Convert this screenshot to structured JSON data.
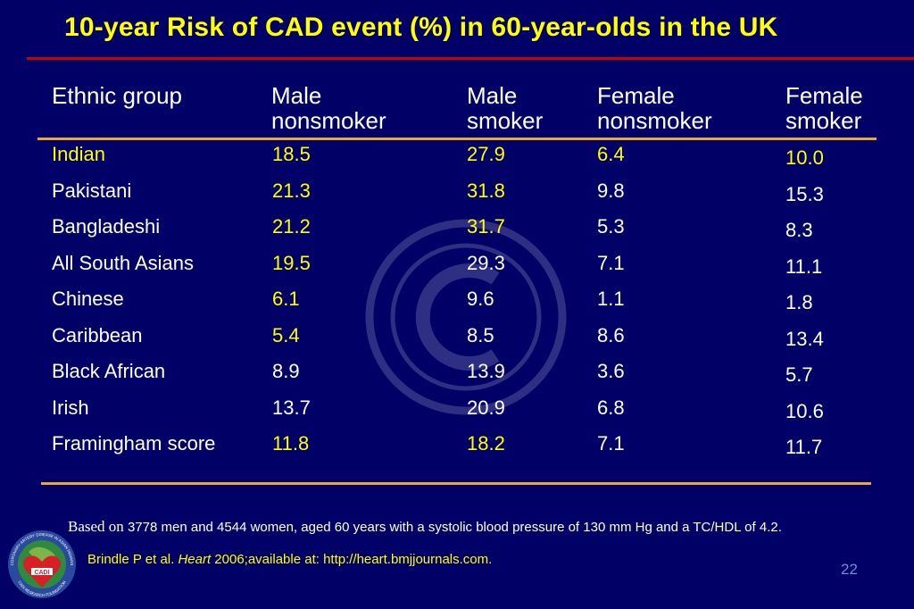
{
  "slide": {
    "title": "10-year Risk of CAD event (%) in 60-year-olds in the UK",
    "page_number": "22"
  },
  "table": {
    "headers": [
      {
        "line1": "Ethnic group",
        "line2": ""
      },
      {
        "line1": "Male",
        "line2": "nonsmoker"
      },
      {
        "line1": "Male",
        "line2": "smoker"
      },
      {
        "line1": "Female",
        "line2": "nonsmoker"
      },
      {
        "line1": "Female",
        "line2": "smoker"
      }
    ],
    "rows": [
      {
        "group": "Indian",
        "male_nonsmoker": "18.5",
        "male_smoker": "27.9",
        "female_nonsmoker": "6.4",
        "female_smoker": "10.0"
      },
      {
        "group": "Pakistani",
        "male_nonsmoker": "21.3",
        "male_smoker": "31.8",
        "female_nonsmoker": "9.8",
        "female_smoker": "15.3"
      },
      {
        "group": "Bangladeshi",
        "male_nonsmoker": "21.2",
        "male_smoker": "31.7",
        "female_nonsmoker": "5.3",
        "female_smoker": "8.3"
      },
      {
        "group": "All South Asians",
        "male_nonsmoker": "19.5",
        "male_smoker": "29.3",
        "female_nonsmoker": "7.1",
        "female_smoker": "11.1"
      },
      {
        "group": "Chinese",
        "male_nonsmoker": "6.1",
        "male_smoker": "9.6",
        "female_nonsmoker": "1.1",
        "female_smoker": "1.8"
      },
      {
        "group": "Caribbean",
        "male_nonsmoker": "5.4",
        "male_smoker": "8.5",
        "female_nonsmoker": "8.6",
        "female_smoker": "13.4"
      },
      {
        "group": "Black African",
        "male_nonsmoker": "8.9",
        "male_smoker": "13.9",
        "female_nonsmoker": "3.6",
        "female_smoker": "5.7"
      },
      {
        "group": "Irish",
        "male_nonsmoker": "13.7",
        "male_smoker": "20.9",
        "female_nonsmoker": "6.8",
        "female_smoker": "10.6"
      },
      {
        "group": "Framingham score",
        "male_nonsmoker": "11.8",
        "male_smoker": "18.2",
        "female_nonsmoker": "7.1",
        "female_smoker": "11.7"
      }
    ]
  },
  "footnote": {
    "lead": "Based on",
    "text": " 3778 men and 4544 women, aged 60 years with a systolic blood pressure of 130 mm Hg and a TC/HDL  of 4.2."
  },
  "citation": {
    "before": "Brindle P et al. ",
    "journal": "Heart",
    "after": " 2006;available at: http://heart.bmjjournals.com."
  },
  "logo": {
    "ring_text": "CORONARY ARTERY DISEASE IN ASIAN INDIANS",
    "bottom_text": "CADI RESEARCH FOUNDATION",
    "badge": "CADI"
  },
  "colors": {
    "background": "#000066",
    "highlight": "#ffff00",
    "normal": "#ffffff",
    "rule": "#e8a83a",
    "title_rule": "#cc0000"
  }
}
